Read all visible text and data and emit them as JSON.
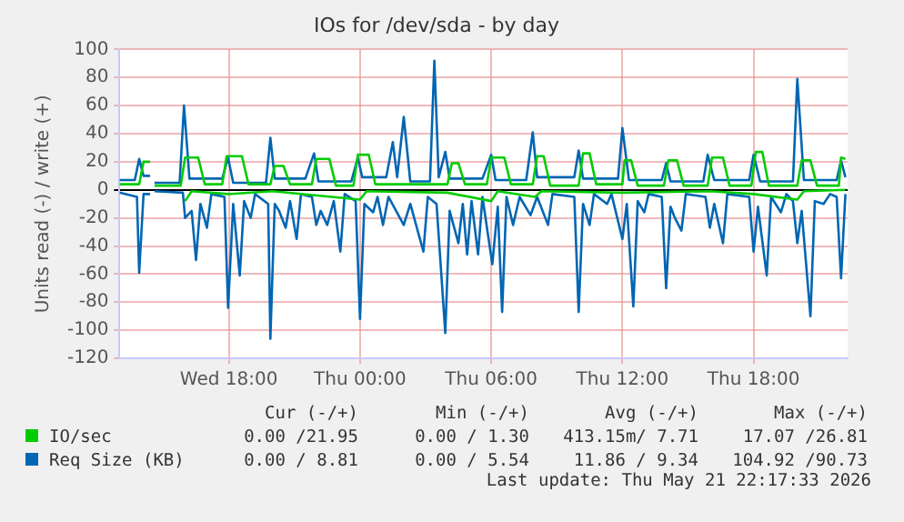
{
  "chart_data": {
    "type": "line",
    "title": "IOs for /dev/sda - by day",
    "ylabel": "Units read (-) / write (+)",
    "xlim": [
      "2026-05-20T13:00",
      "2026-05-21T22:18"
    ],
    "xticks": [
      {
        "value": "2026-05-20T18:00",
        "label": "Wed 18:00"
      },
      {
        "value": "2026-05-21T00:00",
        "label": "Thu 00:00"
      },
      {
        "value": "2026-05-21T06:00",
        "label": "Thu 06:00"
      },
      {
        "value": "2026-05-21T12:00",
        "label": "Thu 12:00"
      },
      {
        "value": "2026-05-21T18:00",
        "label": "Thu 18:00"
      }
    ],
    "ylim": [
      -120,
      100
    ],
    "yticks": [
      -120,
      -100,
      -80,
      -60,
      -40,
      -20,
      0,
      20,
      40,
      60,
      80,
      100
    ],
    "grid": true,
    "legend": "bottom",
    "marker": "none",
    "line_style": "solid",
    "series": [
      {
        "name": "IO/sec",
        "color": "#00cc00",
        "x": [
          "2026-05-20T13:00",
          "2026-05-20T13:54",
          "2026-05-20T14:06",
          "2026-05-20T14:24",
          "2026-05-20T14:30",
          "2026-05-20T14:36",
          "2026-05-20T15:48",
          "2026-05-20T16:00",
          "2026-05-20T16:36",
          "2026-05-20T16:54",
          "2026-05-20T17:42",
          "2026-05-20T17:54",
          "2026-05-20T18:36",
          "2026-05-20T18:54",
          "2026-05-20T19:54",
          "2026-05-20T20:06",
          "2026-05-20T20:30",
          "2026-05-20T20:48",
          "2026-05-20T21:48",
          "2026-05-20T22:00",
          "2026-05-20T22:36",
          "2026-05-20T22:54",
          "2026-05-20T23:42",
          "2026-05-20T23:54",
          "2026-05-21T00:24",
          "2026-05-21T00:42",
          "2026-05-21T04:00",
          "2026-05-21T04:12",
          "2026-05-21T04:30",
          "2026-05-21T04:48",
          "2026-05-21T05:48",
          "2026-05-21T06:00",
          "2026-05-21T06:36",
          "2026-05-21T06:54",
          "2026-05-21T07:54",
          "2026-05-21T08:06",
          "2026-05-21T08:24",
          "2026-05-21T08:42",
          "2026-05-21T10:00",
          "2026-05-21T10:12",
          "2026-05-21T10:30",
          "2026-05-21T10:48",
          "2026-05-21T12:00",
          "2026-05-21T12:06",
          "2026-05-21T12:24",
          "2026-05-21T12:42",
          "2026-05-21T13:54",
          "2026-05-21T14:06",
          "2026-05-21T14:30",
          "2026-05-21T14:48",
          "2026-05-21T15:54",
          "2026-05-21T16:06",
          "2026-05-21T16:36",
          "2026-05-21T16:54",
          "2026-05-21T17:54",
          "2026-05-21T18:06",
          "2026-05-21T18:24",
          "2026-05-21T18:42",
          "2026-05-21T20:00",
          "2026-05-21T20:12",
          "2026-05-21T20:36",
          "2026-05-21T20:54",
          "2026-05-21T21:54",
          "2026-05-21T22:00",
          "2026-05-21T22:12"
        ],
        "values": [
          4,
          4,
          20,
          20,
          null,
          3,
          3,
          23,
          23,
          4,
          4,
          24,
          24,
          4,
          4,
          17,
          17,
          4,
          4,
          22,
          22,
          3,
          3,
          25,
          25,
          4,
          4,
          19,
          19,
          4,
          4,
          23,
          23,
          4,
          4,
          24,
          24,
          3,
          3,
          26,
          26,
          4,
          4,
          21,
          21,
          3,
          3,
          21,
          21,
          3,
          3,
          23,
          23,
          3,
          3,
          27,
          27,
          3,
          3,
          21,
          21,
          3,
          3,
          23,
          22
        ]
      },
      {
        "name": "Req Size (KB)",
        "color": "#0066b3",
        "x": [
          "2026-05-20T13:00",
          "2026-05-20T13:42",
          "2026-05-20T13:54",
          "2026-05-20T14:06",
          "2026-05-20T14:24",
          "2026-05-20T14:30",
          "2026-05-20T14:36",
          "2026-05-20T15:45",
          "2026-05-20T15:57",
          "2026-05-20T16:12",
          "2026-05-20T17:42",
          "2026-05-20T17:58",
          "2026-05-20T18:12",
          "2026-05-20T19:42",
          "2026-05-20T19:54",
          "2026-05-20T20:06",
          "2026-05-20T21:30",
          "2026-05-20T21:54",
          "2026-05-20T22:06",
          "2026-05-20T23:36",
          "2026-05-20T23:54",
          "2026-05-21T00:06",
          "2026-05-21T01:12",
          "2026-05-21T01:30",
          "2026-05-21T01:42",
          "2026-05-21T02:00",
          "2026-05-21T02:18",
          "2026-05-21T03:12",
          "2026-05-21T03:24",
          "2026-05-21T03:36",
          "2026-05-21T03:54",
          "2026-05-21T04:06",
          "2026-05-21T05:36",
          "2026-05-21T06:00",
          "2026-05-21T06:12",
          "2026-05-21T07:36",
          "2026-05-21T07:54",
          "2026-05-21T08:06",
          "2026-05-21T09:48",
          "2026-05-21T10:00",
          "2026-05-21T10:12",
          "2026-05-21T11:48",
          "2026-05-21T12:00",
          "2026-05-21T12:18",
          "2026-05-21T13:48",
          "2026-05-21T14:00",
          "2026-05-21T14:12",
          "2026-05-21T15:42",
          "2026-05-21T15:54",
          "2026-05-21T16:12",
          "2026-05-21T17:48",
          "2026-05-21T18:00",
          "2026-05-21T18:18",
          "2026-05-21T19:48",
          "2026-05-21T20:00",
          "2026-05-21T20:18",
          "2026-05-21T21:48",
          "2026-05-21T22:00",
          "2026-05-21T22:12"
        ],
        "values": [
          7,
          7,
          22,
          10,
          10,
          null,
          5,
          5,
          60,
          8,
          8,
          23,
          5,
          5,
          37,
          8,
          8,
          26,
          6,
          6,
          23,
          9,
          9,
          34,
          9,
          52,
          6,
          6,
          92,
          9,
          27,
          8,
          8,
          25,
          7,
          7,
          41,
          9,
          9,
          28,
          8,
          8,
          44,
          7,
          7,
          19,
          6,
          6,
          25,
          7,
          7,
          25,
          6,
          6,
          79,
          7,
          7,
          21,
          9
        ]
      },
      {
        "color": "#00cc00",
        "x": [
          "2026-05-20T16:00",
          "2026-05-20T16:18",
          "2026-05-20T18:00",
          "2026-05-20T20:00",
          "2026-05-21T00:00",
          "2026-05-21T00:18",
          "2026-05-21T04:00",
          "2026-05-21T06:00",
          "2026-05-21T06:18",
          "2026-05-21T08:00",
          "2026-05-21T08:18",
          "2026-05-21T12:00",
          "2026-05-21T16:00",
          "2026-05-21T18:00",
          "2026-05-21T20:00",
          "2026-05-21T20:18",
          "2026-05-21T22:12"
        ],
        "values": [
          -8,
          -1,
          -3,
          -1,
          -7,
          -1,
          -2,
          -8,
          -1,
          -5,
          -1,
          -2,
          -1,
          -3,
          -7,
          -1,
          0
        ]
      },
      {
        "color": "#0066b3",
        "x": [
          "2026-05-20T13:00",
          "2026-05-20T13:48",
          "2026-05-20T13:54",
          "2026-05-20T14:06",
          "2026-05-20T14:24",
          "2026-05-20T14:30",
          "2026-05-20T14:36",
          "2026-05-20T15:54",
          "2026-05-20T16:00",
          "2026-05-20T16:18",
          "2026-05-20T16:30",
          "2026-05-20T16:42",
          "2026-05-20T17:00",
          "2026-05-20T17:12",
          "2026-05-20T17:48",
          "2026-05-20T17:58",
          "2026-05-20T18:12",
          "2026-05-20T18:30",
          "2026-05-20T18:42",
          "2026-05-20T19:00",
          "2026-05-20T19:12",
          "2026-05-20T19:48",
          "2026-05-20T19:54",
          "2026-05-20T20:06",
          "2026-05-20T20:18",
          "2026-05-20T20:36",
          "2026-05-20T20:48",
          "2026-05-20T21:06",
          "2026-05-20T21:18",
          "2026-05-20T21:48",
          "2026-05-20T22:00",
          "2026-05-20T22:12",
          "2026-05-20T22:30",
          "2026-05-20T22:48",
          "2026-05-20T23:06",
          "2026-05-20T23:18",
          "2026-05-20T23:48",
          "2026-05-21T00:00",
          "2026-05-21T00:12",
          "2026-05-21T00:36",
          "2026-05-21T00:48",
          "2026-05-21T01:03",
          "2026-05-21T01:18",
          "2026-05-21T02:00",
          "2026-05-21T02:18",
          "2026-05-21T02:54",
          "2026-05-21T03:06",
          "2026-05-21T03:30",
          "2026-05-21T03:54",
          "2026-05-21T04:06",
          "2026-05-21T04:30",
          "2026-05-21T04:42",
          "2026-05-21T04:54",
          "2026-05-21T05:06",
          "2026-05-21T05:24",
          "2026-05-21T05:36",
          "2026-05-21T06:03",
          "2026-05-21T06:18",
          "2026-05-21T06:30",
          "2026-05-21T06:42",
          "2026-05-21T07:00",
          "2026-05-21T07:18",
          "2026-05-21T07:48",
          "2026-05-21T08:06",
          "2026-05-21T08:36",
          "2026-05-21T08:48",
          "2026-05-21T09:48",
          "2026-05-21T10:00",
          "2026-05-21T10:12",
          "2026-05-21T10:30",
          "2026-05-21T10:42",
          "2026-05-21T11:18",
          "2026-05-21T11:30",
          "2026-05-21T12:00",
          "2026-05-21T12:12",
          "2026-05-21T12:30",
          "2026-05-21T12:42",
          "2026-05-21T13:00",
          "2026-05-21T13:12",
          "2026-05-21T13:48",
          "2026-05-21T14:00",
          "2026-05-21T14:12",
          "2026-05-21T14:24",
          "2026-05-21T14:42",
          "2026-05-21T14:54",
          "2026-05-21T15:48",
          "2026-05-21T16:00",
          "2026-05-21T16:12",
          "2026-05-21T16:36",
          "2026-05-21T16:48",
          "2026-05-21T17:48",
          "2026-05-21T18:00",
          "2026-05-21T18:12",
          "2026-05-21T18:36",
          "2026-05-21T18:48",
          "2026-05-21T19:15",
          "2026-05-21T19:30",
          "2026-05-21T19:48",
          "2026-05-21T20:00",
          "2026-05-21T20:12",
          "2026-05-21T20:36",
          "2026-05-21T20:48",
          "2026-05-21T21:12",
          "2026-05-21T21:30",
          "2026-05-21T21:48",
          "2026-05-21T22:00",
          "2026-05-21T22:12"
        ],
        "values": [
          -2,
          -5,
          -59,
          -3,
          -3,
          null,
          -1,
          -2,
          -20,
          -15,
          -50,
          -10,
          -27,
          -3,
          -5,
          -84,
          -10,
          -61,
          -8,
          -20,
          -3,
          -10,
          -106,
          -10,
          -15,
          -27,
          -8,
          -35,
          -3,
          -5,
          -25,
          -15,
          -25,
          -8,
          -44,
          -3,
          -8,
          -92,
          -10,
          -16,
          -5,
          -25,
          -5,
          -25,
          -10,
          -44,
          -5,
          -10,
          -102,
          -15,
          -38,
          -10,
          -46,
          -8,
          -46,
          -5,
          -53,
          -12,
          -87,
          -5,
          -25,
          -5,
          -18,
          -5,
          -25,
          -3,
          -5,
          -87,
          -10,
          -25,
          -3,
          -10,
          -3,
          -35,
          -10,
          -83,
          -8,
          -16,
          -3,
          -5,
          -70,
          -12,
          -20,
          -29,
          -3,
          -5,
          -27,
          -10,
          -38,
          -3,
          -5,
          -44,
          -12,
          -61,
          -5,
          -16,
          -3,
          -8,
          -38,
          -15,
          -90,
          -8,
          -10,
          -3,
          -5,
          -63,
          -3
        ]
      }
    ],
    "annotations": [
      "Cur (-/+)",
      "Min (-/+)",
      "Avg (-/+)",
      "Max (-/+)",
      "0.00 /21.95",
      "0.00 / 1.30",
      "413.15m/ 7.71",
      "17.07 /26.81",
      "0.00 / 8.81",
      "0.00 / 5.54",
      "11.86 / 9.34",
      "104.92 /90.73",
      "Last update: Thu May 21 22:17:33 2026"
    ]
  }
}
